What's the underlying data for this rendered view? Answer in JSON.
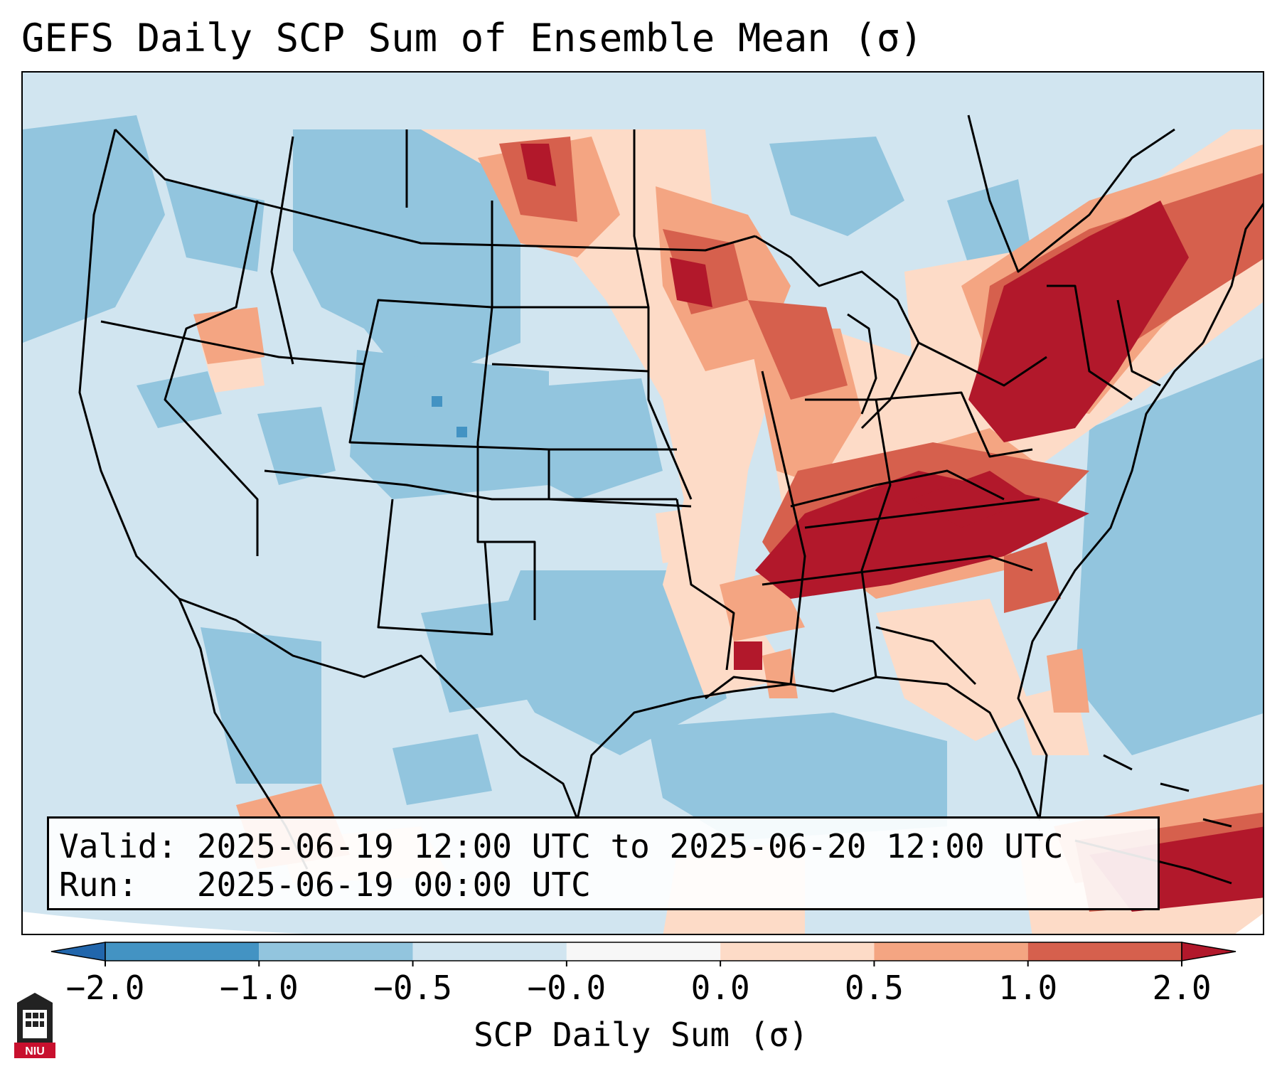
{
  "title": "GEFS Daily SCP Sum of Ensemble Mean (σ)",
  "info": {
    "valid_label": "Valid:",
    "valid_value": "2025-06-19 12:00 UTC to 2025-06-20 12:00 UTC",
    "run_label": "Run:",
    "run_value": "2025-06-19 00:00 UTC"
  },
  "colorbar": {
    "label": "SCP Daily Sum (σ)",
    "ticks": [
      "−2.0",
      "−1.0",
      "−0.5",
      "−0.0",
      "0.0",
      "0.5",
      "1.0",
      "2.0"
    ],
    "colors": [
      "#4393c3",
      "#92c5de",
      "#d1e5f0",
      "#f7f7f7",
      "#fddbc7",
      "#f4a582",
      "#d6604d",
      "#b2182b"
    ],
    "extend_low_color": "#2166ac",
    "extend_high_color": "#b2182b"
  },
  "map": {
    "region": "CONUS",
    "background_color": "#d1e5f0",
    "highlights": [
      {
        "name": "Northeast / Mid-Atlantic",
        "level": "2.0"
      },
      {
        "name": "Ohio / Tennessee Valley",
        "level": "2.0"
      },
      {
        "name": "Upper Midwest",
        "level": "1.0"
      },
      {
        "name": "Northern Plains",
        "level": "1.0"
      },
      {
        "name": "Caribbean",
        "level": "2.0"
      }
    ]
  },
  "logo": {
    "text": "NIU"
  }
}
